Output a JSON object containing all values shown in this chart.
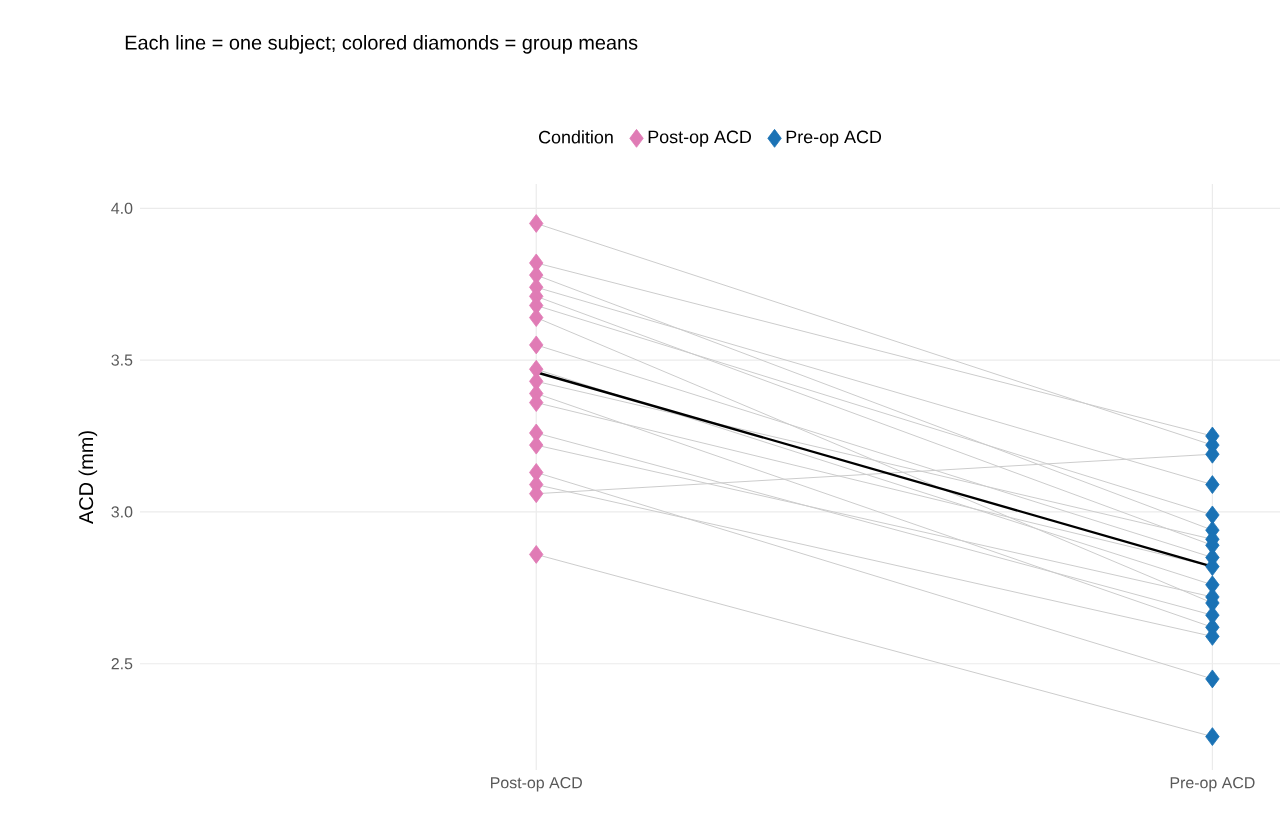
{
  "chart_data": {
    "type": "line",
    "title": "Each line = one subject; colored diamonds = group means",
    "ylabel": "ACD (mm)",
    "legend_title": "Condition",
    "categories": [
      "Post-op ACD",
      "Pre-op ACD"
    ],
    "ylim": [
      2.15,
      4.08
    ],
    "yticks": [
      2.5,
      {
        "value": 3,
        "label": "3.0"
      },
      3.5,
      {
        "value": 4,
        "label": "4.0"
      }
    ],
    "grid": true,
    "legend": "top",
    "series": [
      {
        "color": "#cccccc",
        "values": [
          3.95,
          3.22
        ]
      },
      {
        "color": "#cccccc",
        "values": [
          3.82,
          3.25
        ]
      },
      {
        "color": "#cccccc",
        "values": [
          3.78,
          2.94
        ]
      },
      {
        "color": "#cccccc",
        "values": [
          3.74,
          3.09
        ]
      },
      {
        "color": "#cccccc",
        "values": [
          3.71,
          2.89
        ]
      },
      {
        "color": "#cccccc",
        "values": [
          3.68,
          2.99
        ]
      },
      {
        "color": "#cccccc",
        "values": [
          3.64,
          2.7
        ]
      },
      {
        "color": "#cccccc",
        "values": [
          3.55,
          2.85
        ]
      },
      {
        "color": "#cccccc",
        "values": [
          3.47,
          2.76
        ]
      },
      {
        "color": "#cccccc",
        "values": [
          3.43,
          2.91
        ]
      },
      {
        "color": "#cccccc",
        "values": [
          3.39,
          2.62
        ]
      },
      {
        "color": "#cccccc",
        "values": [
          3.36,
          2.82
        ]
      },
      {
        "color": "#cccccc",
        "values": [
          3.26,
          2.66
        ]
      },
      {
        "color": "#cccccc",
        "values": [
          3.22,
          2.72
        ]
      },
      {
        "color": "#cccccc",
        "values": [
          3.13,
          2.45
        ]
      },
      {
        "color": "#cccccc",
        "values": [
          3.09,
          2.59
        ]
      },
      {
        "color": "#cccccc",
        "values": [
          3.06,
          3.19
        ]
      },
      {
        "color": "#cccccc",
        "values": [
          2.86,
          2.26
        ]
      },
      {
        "type": "scatter",
        "name": "Post-op ACD",
        "color": "#e07bb5",
        "marker": "diamond",
        "x": [
          "Post-op ACD",
          "Post-op ACD",
          "Post-op ACD",
          "Post-op ACD",
          "Post-op ACD",
          "Post-op ACD",
          "Post-op ACD",
          "Post-op ACD",
          "Post-op ACD",
          "Post-op ACD",
          "Post-op ACD",
          "Post-op ACD",
          "Post-op ACD",
          "Post-op ACD",
          "Post-op ACD",
          "Post-op ACD",
          "Post-op ACD",
          "Post-op ACD"
        ],
        "values": [
          3.95,
          3.82,
          3.78,
          3.74,
          3.71,
          3.68,
          3.64,
          3.55,
          3.47,
          3.43,
          3.39,
          3.36,
          3.26,
          3.22,
          3.13,
          3.09,
          3.06,
          2.86
        ]
      },
      {
        "type": "scatter",
        "name": "Pre-op ACD",
        "color": "#1a72b5",
        "marker": "diamond",
        "x": [
          "Pre-op ACD",
          "Pre-op ACD",
          "Pre-op ACD",
          "Pre-op ACD",
          "Pre-op ACD",
          "Pre-op ACD",
          "Pre-op ACD",
          "Pre-op ACD",
          "Pre-op ACD",
          "Pre-op ACD",
          "Pre-op ACD",
          "Pre-op ACD",
          "Pre-op ACD",
          "Pre-op ACD",
          "Pre-op ACD",
          "Pre-op ACD",
          "Pre-op ACD",
          "Pre-op ACD"
        ],
        "values": [
          3.22,
          3.25,
          2.94,
          3.09,
          2.89,
          2.99,
          2.7,
          2.85,
          2.76,
          2.91,
          2.62,
          2.82,
          2.66,
          2.72,
          2.45,
          2.59,
          3.19,
          2.26
        ]
      },
      {
        "color": "#000000",
        "values": [
          3.46,
          2.82
        ]
      }
    ]
  }
}
